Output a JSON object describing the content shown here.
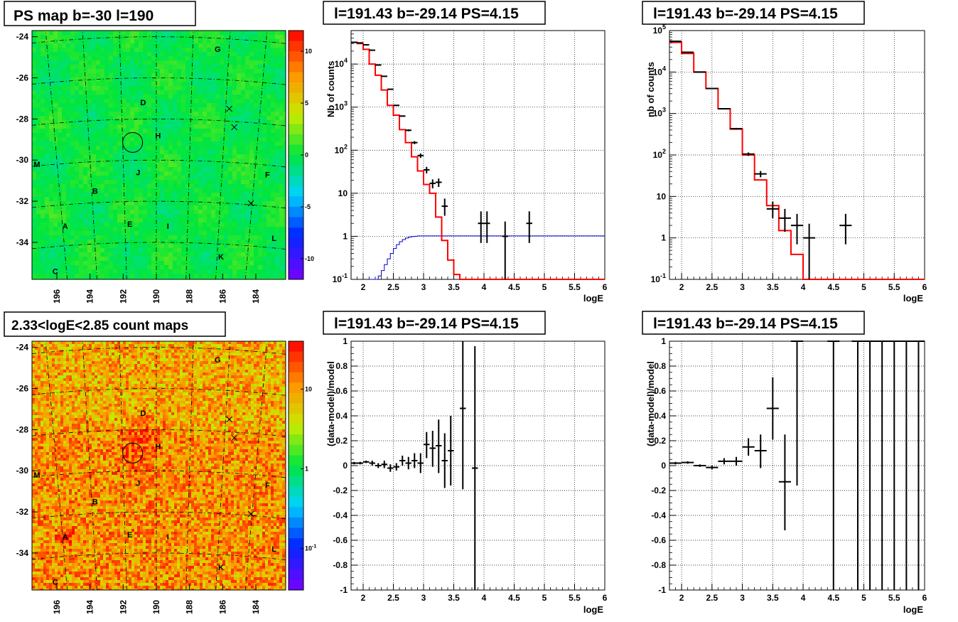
{
  "colors": {
    "model": "#ff0000",
    "background_model": "#0000cc",
    "data": "#000000"
  },
  "chart_data": [
    {
      "id": "psmap",
      "type": "heatmap",
      "title": "PS map b=-30 l=190",
      "x_ticks": [
        "196",
        "194",
        "192",
        "190",
        "188",
        "186",
        "184"
      ],
      "y_ticks": [
        "-24",
        "-26",
        "-28",
        "-30",
        "-32",
        "-34"
      ],
      "xlim": [
        197.5,
        182.2
      ],
      "ylim": [
        -35.8,
        -23.7
      ],
      "colorbar": {
        "ticks": [
          "10",
          "5",
          "0",
          "-5",
          "-10"
        ],
        "range": [
          -12,
          12
        ]
      },
      "sources": [
        {
          "label": "G",
          "l": 186.3,
          "b": -24.6
        },
        {
          "label": "D",
          "l": 190.8,
          "b": -27.2
        },
        {
          "label": "H",
          "l": 189.9,
          "b": -28.8
        },
        {
          "label": "M",
          "l": 197.2,
          "b": -30.2
        },
        {
          "label": "J",
          "l": 191.1,
          "b": -30.6
        },
        {
          "label": "F",
          "l": 183.3,
          "b": -30.7
        },
        {
          "label": "B",
          "l": 193.7,
          "b": -31.5
        },
        {
          "label": "A",
          "l": 195.5,
          "b": -33.2
        },
        {
          "label": "E",
          "l": 191.6,
          "b": -33.1
        },
        {
          "label": "I",
          "l": 189.3,
          "b": -33.2
        },
        {
          "label": "L",
          "l": 182.9,
          "b": -33.8
        },
        {
          "label": "K",
          "l": 186.1,
          "b": -34.7
        },
        {
          "label": "C",
          "l": 196.1,
          "b": -35.4
        }
      ],
      "crosses": [
        {
          "l": 185.6,
          "b": -27.5
        },
        {
          "l": 185.3,
          "b": -28.4
        },
        {
          "l": 184.3,
          "b": -32.1
        }
      ],
      "circle": {
        "l": 191.43,
        "b": -29.14
      }
    },
    {
      "id": "spectrum_fine",
      "type": "line",
      "title": "l=191.43 b=-29.14 PS=4.15",
      "xlabel": "logE",
      "ylabel": "Nb of counts",
      "y_scale": "log",
      "xlim": [
        1.8,
        6.0
      ],
      "ylim": [
        0.1,
        60000
      ],
      "x_ticks": [
        "2",
        "2.5",
        "3",
        "3.5",
        "4",
        "4.5",
        "5",
        "5.5",
        "6"
      ],
      "y_ticks": [
        "10^4",
        "10^3",
        "10^2",
        "10",
        "1",
        "10^-1"
      ],
      "series": [
        {
          "kind": "model_steps",
          "bin_width": 0.1,
          "x_start": 1.8,
          "values": [
            32000,
            30000,
            22000,
            10000,
            5500,
            2500,
            1100,
            650,
            300,
            150,
            70,
            33,
            16,
            10,
            2.8,
            0.8,
            0.28,
            0.13,
            0.1,
            0.1,
            0.1,
            0.1,
            0.1,
            0.1,
            0.1,
            0.1,
            0.1,
            0.1,
            0.1,
            0.1,
            0.1,
            0.1,
            0.1,
            0.1,
            0.1,
            0.1,
            0.1,
            0.1,
            0.1,
            0.1,
            0.1,
            0.1
          ]
        },
        {
          "kind": "background_steps",
          "bin_width": 0.05,
          "x_start": 2.1,
          "values": [
            0.07,
            0.085,
            0.1,
            0.12,
            0.16,
            0.22,
            0.3,
            0.4,
            0.52,
            0.64,
            0.75,
            0.84,
            0.91,
            0.96,
            0.99,
            1.0,
            1.02,
            1.02,
            1.02,
            1.02,
            1.02,
            1.02,
            1.02,
            1.02,
            1.02,
            1.02,
            1.02,
            1.02,
            1.02,
            1.02,
            1.02,
            1.02,
            1.02,
            1.02,
            1.02,
            1.02,
            1.02,
            1.02,
            1.02,
            1.02,
            1.02,
            1.02,
            1.02,
            1.02,
            1.02,
            1.02,
            1.02,
            1.02,
            1.02,
            1.02,
            1.02,
            1.02,
            1.02,
            1.02,
            1.02,
            1.02,
            1.02,
            1.02,
            1.02,
            1.02,
            1.02,
            1.02,
            1.02,
            1.02,
            1.02,
            1.02,
            1.02,
            1.02,
            1.02,
            1.02,
            1.02,
            1.02,
            1.02,
            1.02,
            1.02,
            1.02,
            1.02,
            1.02
          ]
        },
        {
          "kind": "data",
          "half_width": 0.05,
          "points": [
            {
              "x": 1.85,
              "y": 32000,
              "lo": 31800,
              "hi": 32200
            },
            {
              "x": 1.95,
              "y": 31000,
              "lo": 30800,
              "hi": 31200
            },
            {
              "x": 2.05,
              "y": 28000,
              "lo": 27800,
              "hi": 28200
            },
            {
              "x": 2.15,
              "y": 21000,
              "lo": 20800,
              "hi": 21200
            },
            {
              "x": 2.25,
              "y": 9500,
              "lo": 9400,
              "hi": 9600
            },
            {
              "x": 2.35,
              "y": 5200,
              "lo": 5100,
              "hi": 5300
            },
            {
              "x": 2.45,
              "y": 2600,
              "lo": 2550,
              "hi": 2650
            },
            {
              "x": 2.55,
              "y": 1100,
              "lo": 1070,
              "hi": 1130
            },
            {
              "x": 2.65,
              "y": 620,
              "lo": 600,
              "hi": 640
            },
            {
              "x": 2.75,
              "y": 290,
              "lo": 275,
              "hi": 305
            },
            {
              "x": 2.85,
              "y": 150,
              "lo": 138,
              "hi": 162
            },
            {
              "x": 2.95,
              "y": 75,
              "lo": 66,
              "hi": 84
            },
            {
              "x": 3.05,
              "y": 35,
              "lo": 29,
              "hi": 41
            },
            {
              "x": 3.15,
              "y": 17,
              "lo": 13,
              "hi": 21
            },
            {
              "x": 3.25,
              "y": 18,
              "lo": 14,
              "hi": 22
            },
            {
              "x": 3.35,
              "y": 5,
              "lo": 3,
              "hi": 7.5
            },
            {
              "x": 3.95,
              "y": 2,
              "lo": 0.7,
              "hi": 3.8
            },
            {
              "x": 4.05,
              "y": 2,
              "lo": 0.7,
              "hi": 3.8
            },
            {
              "x": 4.35,
              "y": 1,
              "lo": 0.1,
              "hi": 2.2
            },
            {
              "x": 4.75,
              "y": 2,
              "lo": 0.7,
              "hi": 3.8
            }
          ]
        }
      ]
    },
    {
      "id": "spectrum_coarse",
      "type": "line",
      "title": "l=191.43 b=-29.14 PS=4.15",
      "xlabel": "logE",
      "ylabel": "nb of counts",
      "y_scale": "log",
      "xlim": [
        1.8,
        6.0
      ],
      "ylim": [
        0.1,
        100000
      ],
      "x_ticks": [
        "2",
        "2.5",
        "3",
        "3.5",
        "4",
        "4.5",
        "5",
        "5.5",
        "6"
      ],
      "y_ticks": [
        "10^5",
        "10^4",
        "10^3",
        "10^2",
        "10",
        "1",
        "10^-1"
      ],
      "series": [
        {
          "kind": "model_steps",
          "bin_width": 0.2,
          "x_start": 1.8,
          "values": [
            52000,
            28000,
            10000,
            4000,
            1300,
            420,
            100,
            25,
            6,
            1.5,
            0.4,
            0.1,
            0.1,
            0.1,
            0.1,
            0.1,
            0.1,
            0.1,
            0.1,
            0.1,
            0.1
          ]
        },
        {
          "kind": "data",
          "half_width": 0.1,
          "points": [
            {
              "x": 1.9,
              "y": 55000,
              "lo": 54700,
              "hi": 55300
            },
            {
              "x": 2.1,
              "y": 30000,
              "lo": 29800,
              "hi": 30200
            },
            {
              "x": 2.3,
              "y": 10000,
              "lo": 9900,
              "hi": 10100
            },
            {
              "x": 2.5,
              "y": 4000,
              "lo": 3930,
              "hi": 4070
            },
            {
              "x": 2.7,
              "y": 1300,
              "lo": 1260,
              "hi": 1340
            },
            {
              "x": 2.9,
              "y": 430,
              "lo": 410,
              "hi": 450
            },
            {
              "x": 3.1,
              "y": 105,
              "lo": 95,
              "hi": 115
            },
            {
              "x": 3.3,
              "y": 35,
              "lo": 29,
              "hi": 41
            },
            {
              "x": 3.5,
              "y": 5,
              "lo": 3,
              "hi": 7.5
            },
            {
              "x": 3.7,
              "y": 3,
              "lo": 1.4,
              "hi": 5
            },
            {
              "x": 3.9,
              "y": 2,
              "lo": 0.7,
              "hi": 3.8
            },
            {
              "x": 4.1,
              "y": 1,
              "lo": 0.1,
              "hi": 2.2
            },
            {
              "x": 4.7,
              "y": 2,
              "lo": 0.7,
              "hi": 3.8
            }
          ]
        }
      ]
    },
    {
      "id": "countmap",
      "type": "heatmap",
      "title": "2.33<logE<2.85 count maps",
      "x_ticks": [
        "196",
        "194",
        "192",
        "190",
        "188",
        "186",
        "184"
      ],
      "y_ticks": [
        "-24",
        "-26",
        "-28",
        "-30",
        "-32",
        "-34"
      ],
      "xlim": [
        197.5,
        182.2
      ],
      "ylim": [
        -35.8,
        -23.7
      ],
      "colorbar": {
        "ticks": [
          "10",
          "1",
          "10^-1"
        ],
        "scale": "log"
      },
      "sources": [
        {
          "label": "G",
          "l": 186.3,
          "b": -24.6
        },
        {
          "label": "D",
          "l": 190.8,
          "b": -27.2
        },
        {
          "label": "H",
          "l": 189.9,
          "b": -28.8
        },
        {
          "label": "M",
          "l": 197.2,
          "b": -30.2
        },
        {
          "label": "J",
          "l": 191.1,
          "b": -30.6
        },
        {
          "label": "F",
          "l": 183.3,
          "b": -30.7
        },
        {
          "label": "B",
          "l": 193.7,
          "b": -31.5
        },
        {
          "label": "A",
          "l": 195.5,
          "b": -33.2
        },
        {
          "label": "E",
          "l": 191.6,
          "b": -33.1
        },
        {
          "label": "I",
          "l": 189.3,
          "b": -33.2
        },
        {
          "label": "L",
          "l": 182.9,
          "b": -33.8
        },
        {
          "label": "K",
          "l": 186.1,
          "b": -34.7
        },
        {
          "label": "C",
          "l": 196.1,
          "b": -35.4
        }
      ],
      "crosses": [
        {
          "l": 185.6,
          "b": -27.5
        },
        {
          "l": 185.3,
          "b": -28.4
        },
        {
          "l": 184.3,
          "b": -32.1
        }
      ],
      "circle": {
        "l": 191.43,
        "b": -29.14
      }
    },
    {
      "id": "resid_fine",
      "type": "scatter",
      "title": "l=191.43 b=-29.14 PS=4.15",
      "xlabel": "logE",
      "ylabel": "(data-model)/model",
      "xlim": [
        1.8,
        6.0
      ],
      "ylim": [
        -1,
        1
      ],
      "x_ticks": [
        "2",
        "2.5",
        "3",
        "3.5",
        "4",
        "4.5",
        "5",
        "5.5",
        "6"
      ],
      "y_ticks": [
        "1",
        "0.8",
        "0.6",
        "0.4",
        "0.2",
        "0",
        "-0.2",
        "-0.4",
        "-0.6",
        "-0.8",
        "-1"
      ],
      "half_width": 0.05,
      "points": [
        {
          "x": 1.85,
          "y": 0.02,
          "lo": 0.01,
          "hi": 0.03
        },
        {
          "x": 1.95,
          "y": 0.02,
          "lo": 0.01,
          "hi": 0.03
        },
        {
          "x": 2.05,
          "y": 0.03,
          "lo": 0.02,
          "hi": 0.04
        },
        {
          "x": 2.15,
          "y": 0.02,
          "lo": 0.0,
          "hi": 0.04
        },
        {
          "x": 2.25,
          "y": 0.0,
          "lo": -0.02,
          "hi": 0.02
        },
        {
          "x": 2.35,
          "y": 0.01,
          "lo": -0.02,
          "hi": 0.04
        },
        {
          "x": 2.45,
          "y": -0.02,
          "lo": -0.05,
          "hi": 0.01
        },
        {
          "x": 2.55,
          "y": -0.01,
          "lo": -0.04,
          "hi": 0.02
        },
        {
          "x": 2.65,
          "y": 0.04,
          "lo": 0.0,
          "hi": 0.08
        },
        {
          "x": 2.75,
          "y": 0.02,
          "lo": -0.03,
          "hi": 0.07
        },
        {
          "x": 2.85,
          "y": 0.04,
          "lo": -0.02,
          "hi": 0.1
        },
        {
          "x": 2.95,
          "y": 0.02,
          "lo": -0.06,
          "hi": 0.1
        },
        {
          "x": 3.05,
          "y": 0.17,
          "lo": 0.06,
          "hi": 0.27
        },
        {
          "x": 3.15,
          "y": 0.14,
          "lo": -0.01,
          "hi": 0.28
        },
        {
          "x": 3.25,
          "y": 0.16,
          "lo": -0.06,
          "hi": 0.37
        },
        {
          "x": 3.35,
          "y": 0.04,
          "lo": -0.18,
          "hi": 0.26
        },
        {
          "x": 3.45,
          "y": 0.12,
          "lo": -0.16,
          "hi": 0.4
        },
        {
          "x": 3.65,
          "y": 0.46,
          "lo": -0.19,
          "hi": 1.0
        },
        {
          "x": 3.85,
          "y": -0.02,
          "lo": -1.0,
          "hi": 0.96
        }
      ]
    },
    {
      "id": "resid_coarse",
      "type": "scatter",
      "title": "l=191.43 b=-29.14 PS=4.15",
      "xlabel": "logE",
      "ylabel": "(data-model)/model",
      "xlim": [
        1.8,
        6.0
      ],
      "ylim": [
        -1,
        1
      ],
      "x_ticks": [
        "2",
        "2.5",
        "3",
        "3.5",
        "4",
        "4.5",
        "5",
        "5.5",
        "6"
      ],
      "y_ticks": [
        "1",
        "0.8",
        "0.6",
        "0.4",
        "0.2",
        "0",
        "-0.2",
        "-0.4",
        "-0.6",
        "-0.8",
        "-1"
      ],
      "half_width": 0.1,
      "points": [
        {
          "x": 1.9,
          "y": 0.02,
          "lo": 0.01,
          "hi": 0.03
        },
        {
          "x": 2.1,
          "y": 0.025,
          "lo": 0.015,
          "hi": 0.035
        },
        {
          "x": 2.3,
          "y": 0.0,
          "lo": -0.01,
          "hi": 0.01
        },
        {
          "x": 2.5,
          "y": -0.015,
          "lo": -0.03,
          "hi": 0.0
        },
        {
          "x": 2.7,
          "y": 0.035,
          "lo": 0.01,
          "hi": 0.06
        },
        {
          "x": 2.9,
          "y": 0.035,
          "lo": 0.0,
          "hi": 0.07
        },
        {
          "x": 3.1,
          "y": 0.15,
          "lo": 0.08,
          "hi": 0.22
        },
        {
          "x": 3.3,
          "y": 0.12,
          "lo": -0.02,
          "hi": 0.25
        },
        {
          "x": 3.5,
          "y": 0.46,
          "lo": 0.21,
          "hi": 0.71
        },
        {
          "x": 3.7,
          "y": -0.13,
          "lo": -0.52,
          "hi": 0.25
        },
        {
          "x": 3.9,
          "y": 1.0,
          "lo": -0.16,
          "hi": 1.0
        },
        {
          "x": 4.5,
          "y": 1.0,
          "lo": -1.0,
          "hi": 1.0
        },
        {
          "x": 4.9,
          "y": 1.0,
          "lo": -1.0,
          "hi": 1.0
        },
        {
          "x": 5.1,
          "y": 1.0,
          "lo": -1.0,
          "hi": 1.0
        },
        {
          "x": 5.3,
          "y": 1.0,
          "lo": -1.0,
          "hi": 1.0
        },
        {
          "x": 5.5,
          "y": 1.0,
          "lo": -1.0,
          "hi": 1.0
        },
        {
          "x": 5.7,
          "y": 1.0,
          "lo": -1.0,
          "hi": 1.0
        },
        {
          "x": 5.9,
          "y": 1.0,
          "lo": -1.0,
          "hi": 1.0
        }
      ]
    }
  ]
}
